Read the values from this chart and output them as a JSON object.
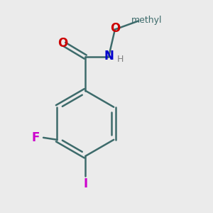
{
  "background_color": "#ebebeb",
  "bond_color": "#3d6b6b",
  "bond_width": 1.8,
  "atom_colors": {
    "O": "#cc0000",
    "N": "#0000cc",
    "F": "#cc00cc",
    "I": "#cc00cc",
    "H": "#808080",
    "C": "#3d6b6b"
  },
  "font_size_main": 12,
  "font_size_small": 9,
  "font_size_methyl": 9
}
